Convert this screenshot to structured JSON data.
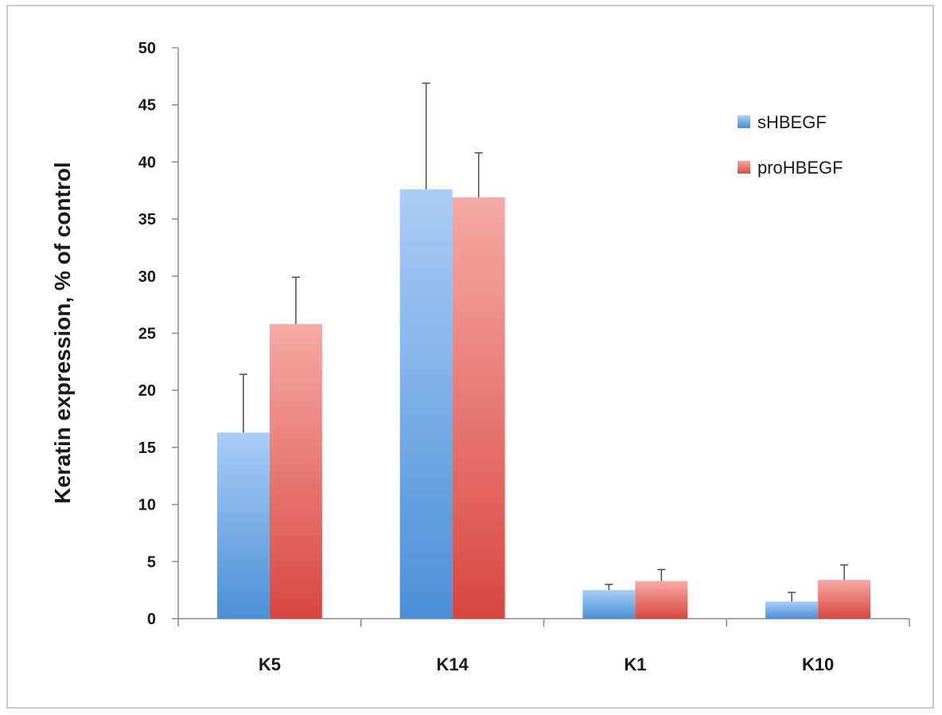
{
  "chart_data": {
    "type": "bar",
    "title": "",
    "xlabel": "",
    "ylabel": "Keratin expression,  % of control",
    "ylim": [
      0,
      50
    ],
    "yticks": [
      0,
      5,
      10,
      15,
      20,
      25,
      30,
      35,
      40,
      45,
      50
    ],
    "categories": [
      "K5",
      "K14",
      "K1",
      "K10"
    ],
    "legend_position": "top-right",
    "series": [
      {
        "name": "sHBEGF",
        "color": "#5b9bd5",
        "values": [
          16.3,
          37.6,
          2.5,
          1.5
        ],
        "errors": [
          5.1,
          9.3,
          0.5,
          0.8
        ]
      },
      {
        "name": "proHBEGF",
        "color": "#e05a52",
        "values": [
          25.8,
          36.9,
          3.3,
          3.4
        ],
        "errors": [
          4.1,
          3.9,
          1.0,
          1.3
        ]
      }
    ],
    "grid": false
  }
}
